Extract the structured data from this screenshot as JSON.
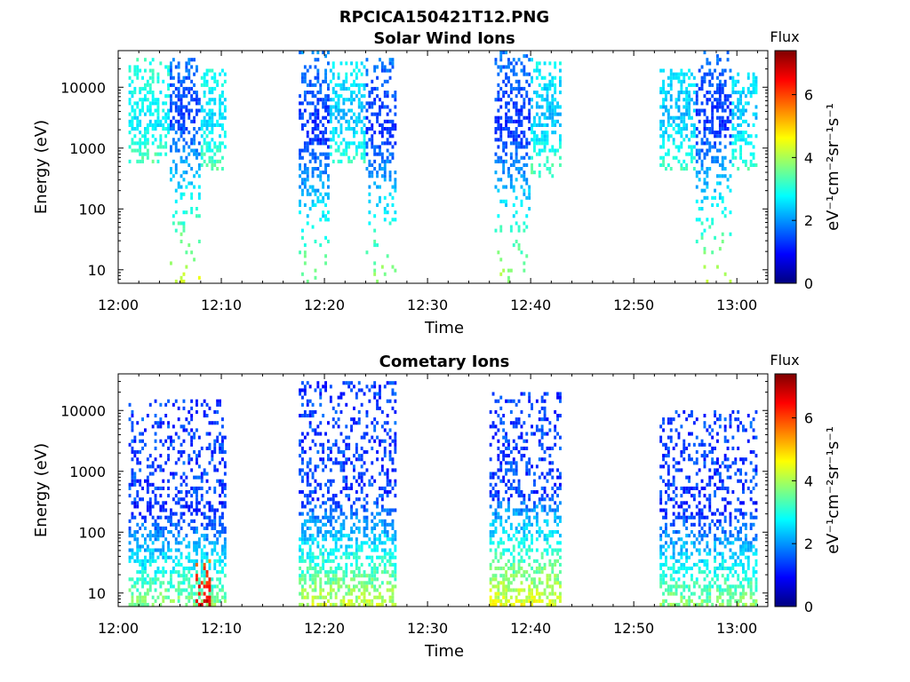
{
  "figure": {
    "title": "RPCICA150421T12.PNG"
  },
  "colors": {
    "colormap": [
      "#00007f",
      "#0000ff",
      "#0080ff",
      "#00ffff",
      "#80ff80",
      "#ffff00",
      "#ff8000",
      "#ff0000",
      "#7f0000"
    ]
  },
  "chart_data": [
    {
      "type": "heatmap",
      "title": "Solar Wind Ions",
      "xlabel": "Time",
      "ylabel": "Energy (eV)",
      "xlim": [
        "12:00",
        "13:03"
      ],
      "x_ticks": [
        "12:00",
        "12:10",
        "12:20",
        "12:30",
        "12:40",
        "12:50",
        "13:00"
      ],
      "ylim": [
        6,
        40000
      ],
      "y_scale": "log",
      "y_ticks": [
        10,
        100,
        1000,
        10000
      ],
      "y_tick_labels": [
        "10",
        "100",
        "1000",
        "10000"
      ],
      "grid": false,
      "colorbar": {
        "title": "Flux",
        "label": "eV⁻¹cm⁻²sr⁻¹s⁻¹",
        "range": [
          0,
          7.4
        ],
        "ticks": [
          0,
          2,
          4,
          6
        ],
        "tick_labels": [
          "0",
          "2",
          "4",
          "6"
        ]
      },
      "activity_intervals": [
        {
          "start": "12:01",
          "end": "12:05",
          "e_min": 500,
          "e_max": 30000,
          "peak_energy": 2500,
          "peak_flux": 2.6
        },
        {
          "start": "12:05",
          "end": "12:08",
          "e_min": 6,
          "e_max": 30000,
          "peak_energy": 3000,
          "peak_flux": 1.3
        },
        {
          "start": "12:08",
          "end": "12:10.5",
          "e_min": 400,
          "e_max": 20000,
          "peak_energy": 2500,
          "peak_flux": 2.5
        },
        {
          "start": "12:17.5",
          "end": "12:20.5",
          "e_min": 6,
          "e_max": 40000,
          "peak_energy": 1500,
          "peak_flux": 1.2
        },
        {
          "start": "12:20.5",
          "end": "12:24",
          "e_min": 500,
          "e_max": 25000,
          "peak_energy": 3000,
          "peak_flux": 2.3
        },
        {
          "start": "12:24",
          "end": "12:27",
          "e_min": 6,
          "e_max": 30000,
          "peak_energy": 2000,
          "peak_flux": 1.2
        },
        {
          "start": "12:36.5",
          "end": "12:40",
          "e_min": 6,
          "e_max": 40000,
          "peak_energy": 2000,
          "peak_flux": 1.2
        },
        {
          "start": "12:40",
          "end": "12:43",
          "e_min": 300,
          "e_max": 30000,
          "peak_energy": 3000,
          "peak_flux": 2.3
        },
        {
          "start": "12:52.5",
          "end": "12:56",
          "e_min": 400,
          "e_max": 20000,
          "peak_energy": 3000,
          "peak_flux": 2.3
        },
        {
          "start": "12:56",
          "end": "12:59.5",
          "e_min": 6,
          "e_max": 40000,
          "peak_energy": 2500,
          "peak_flux": 1.2
        },
        {
          "start": "12:59.5",
          "end": "13:02",
          "e_min": 400,
          "e_max": 20000,
          "peak_energy": 3000,
          "peak_flux": 2.3
        }
      ]
    },
    {
      "type": "heatmap",
      "title": "Cometary Ions",
      "xlabel": "Time",
      "ylabel": "Energy (eV)",
      "xlim": [
        "12:00",
        "13:03"
      ],
      "x_ticks": [
        "12:00",
        "12:10",
        "12:20",
        "12:30",
        "12:40",
        "12:50",
        "13:00"
      ],
      "ylim": [
        6,
        40000
      ],
      "y_scale": "log",
      "y_ticks": [
        10,
        100,
        1000,
        10000
      ],
      "y_tick_labels": [
        "10",
        "100",
        "1000",
        "10000"
      ],
      "grid": false,
      "colorbar": {
        "title": "Flux",
        "label": "eV⁻¹cm⁻²sr⁻¹s⁻¹",
        "range": [
          0,
          7.4
        ],
        "ticks": [
          0,
          2,
          4,
          6
        ],
        "tick_labels": [
          "0",
          "2",
          "4",
          "6"
        ]
      },
      "activity_intervals": [
        {
          "start": "12:01",
          "end": "12:10.5",
          "e_min": 6,
          "e_max": 15000,
          "peak_energy": 10,
          "peak_flux": 3.8
        },
        {
          "start": "12:07.5",
          "end": "12:09",
          "e_min": 6,
          "e_max": 40,
          "peak_energy": 8,
          "peak_flux": 7.0
        },
        {
          "start": "12:17.5",
          "end": "12:27",
          "e_min": 6,
          "e_max": 30000,
          "peak_energy": 10,
          "peak_flux": 4.2
        },
        {
          "start": "12:36",
          "end": "12:43",
          "e_min": 6,
          "e_max": 20000,
          "peak_energy": 10,
          "peak_flux": 4.5
        },
        {
          "start": "12:52.5",
          "end": "13:02",
          "e_min": 6,
          "e_max": 10000,
          "peak_energy": 10,
          "peak_flux": 3.8
        }
      ]
    }
  ]
}
